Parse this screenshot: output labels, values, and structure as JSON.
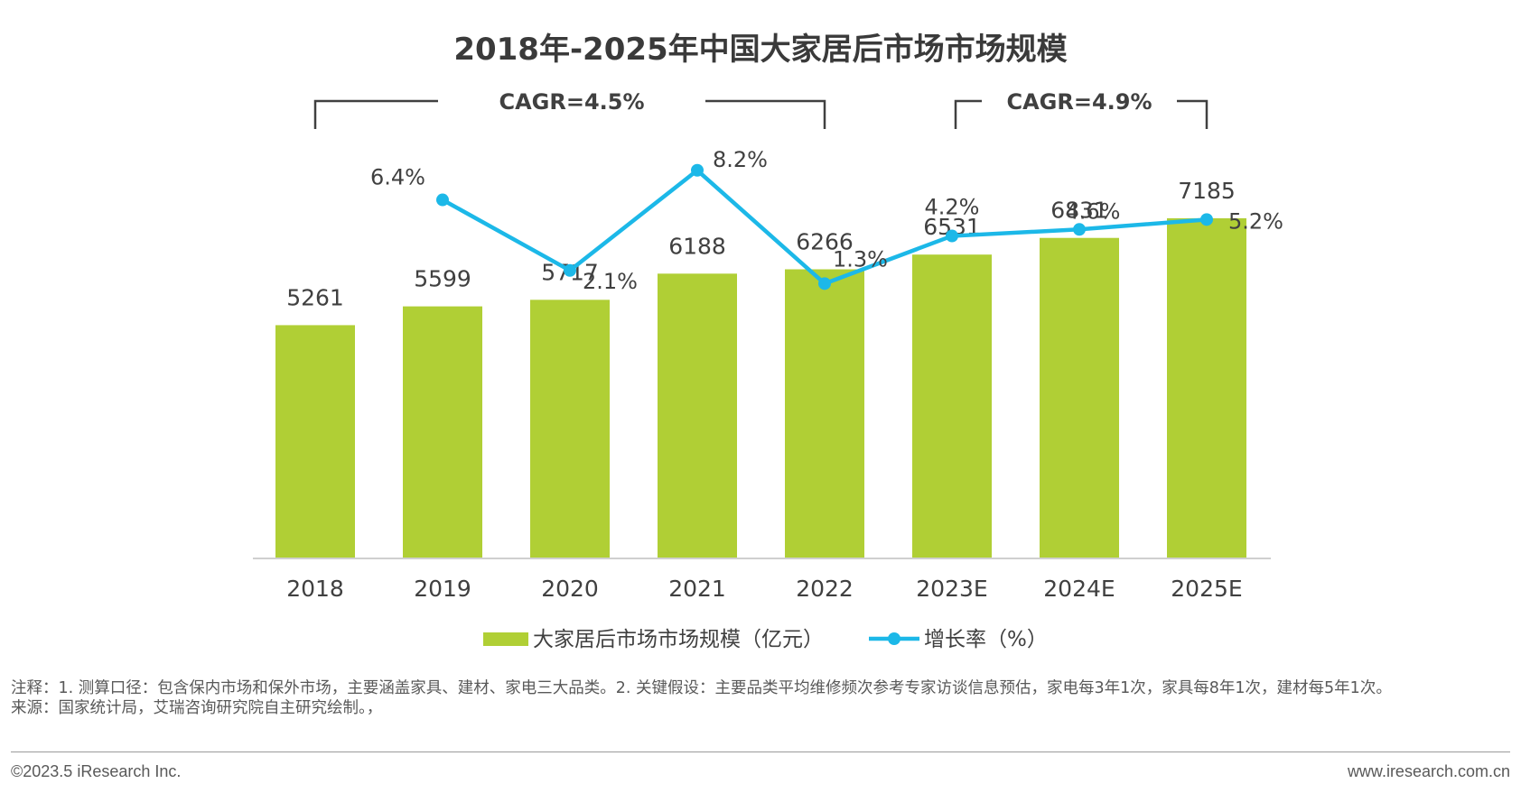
{
  "chart_data": {
    "type": "bar",
    "title": "2018年-2025年中国大家居后市场市场规模",
    "categories": [
      "2018",
      "2019",
      "2020",
      "2021",
      "2022",
      "2023E",
      "2024E",
      "2025E"
    ],
    "series": [
      {
        "name": "大家居后市场市场规模（亿元）",
        "type": "bar",
        "color": "#b0cf35",
        "values": [
          5261,
          5599,
          5717,
          6188,
          6266,
          6531,
          6831,
          7185
        ],
        "labels": [
          "5261",
          "5599",
          "5717",
          "6188",
          "6266",
          "6531",
          "6831",
          "7185"
        ]
      },
      {
        "name": "增长率（%）",
        "type": "line",
        "color": "#1cb8e8",
        "values": [
          null,
          6.4,
          2.1,
          8.2,
          1.3,
          4.2,
          4.6,
          5.2
        ],
        "labels": [
          "",
          "6.4%",
          "2.1%",
          "8.2%",
          "1.3%",
          "4.2%",
          "4.6%",
          "5.2%"
        ]
      }
    ],
    "annotations": [
      {
        "text": "CAGR=4.5%",
        "from": "2018",
        "to": "2022"
      },
      {
        "text": "CAGR=4.9%",
        "from": "2023E",
        "to": "2025E"
      }
    ],
    "ylim_bar": [
      0,
      8000
    ],
    "ylim_line": [
      0,
      10
    ],
    "grid": false,
    "legend_position": "bottom"
  },
  "footer": {
    "notes_line1": "注释：1. 测算口径：包含保内市场和保外市场，主要涵盖家具、建材、家电三大品类。2. 关键假设：主要品类平均维修频次参考专家访谈信息预估，家电每3年1次，家具每8年1次，建材每5年1次。",
    "source": "来源：国家统计局，艾瑞咨询研究院自主研究绘制。，",
    "copyright": "©2023.5 iResearch Inc.",
    "website": "www.iresearch.com.cn"
  }
}
